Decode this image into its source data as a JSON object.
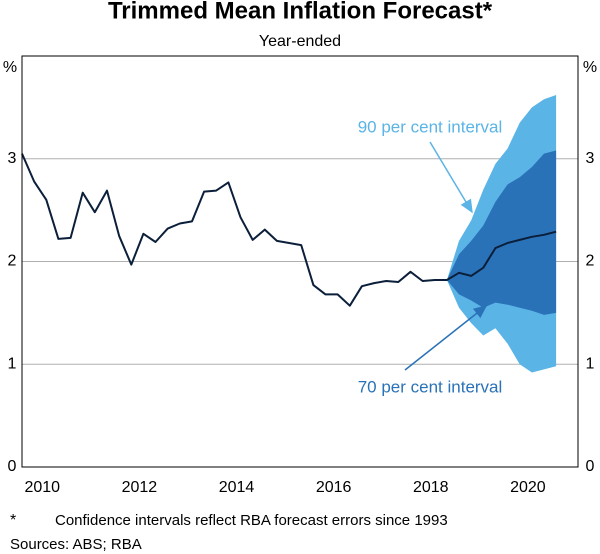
{
  "chart_data": {
    "type": "line",
    "title": "Trimmed Mean Inflation Forecast*",
    "subtitle": "Year-ended",
    "y_unit": "%",
    "footnote_marker": "*",
    "footnote": "Confidence intervals reflect RBA forecast errors since 1993",
    "sources": "Sources: ABS; RBA",
    "x": [
      2010,
      2010.25,
      2010.5,
      2010.75,
      2011,
      2011.25,
      2011.5,
      2011.75,
      2012,
      2012.25,
      2012.5,
      2012.75,
      2013,
      2013.25,
      2013.5,
      2013.75,
      2014,
      2014.25,
      2014.5,
      2014.75,
      2015,
      2015.25,
      2015.5,
      2015.75,
      2016,
      2016.25,
      2016.5,
      2016.75,
      2017,
      2017.25,
      2017.5,
      2017.75,
      2018,
      2018.25,
      2018.5,
      2018.75,
      2019,
      2019.25,
      2019.5,
      2019.75,
      2020,
      2020.25,
      2020.5,
      2020.75,
      2021
    ],
    "xlim": [
      2010,
      2021.45
    ],
    "xticks": [
      {
        "value": 2010.5,
        "label": "2010"
      },
      {
        "value": 2012.5,
        "label": "2012"
      },
      {
        "value": 2014.5,
        "label": "2014"
      },
      {
        "value": 2016.5,
        "label": "2016"
      },
      {
        "value": 2018.5,
        "label": "2018"
      },
      {
        "value": 2020.5,
        "label": "2020"
      }
    ],
    "ylim": [
      0,
      4
    ],
    "yticks": [
      0,
      1,
      2,
      3
    ],
    "grid": true,
    "series": [
      {
        "color": "#0b1f3a",
        "values": [
          3.05,
          2.78,
          2.6,
          2.22,
          2.23,
          2.67,
          2.48,
          2.69,
          2.25,
          1.97,
          2.27,
          2.19,
          2.32,
          2.37,
          2.39,
          2.68,
          2.69,
          2.77,
          2.43,
          2.21,
          2.31,
          2.2,
          2.18,
          2.16,
          1.77,
          1.68,
          1.68,
          1.57,
          1.76,
          1.79,
          1.81,
          1.8,
          1.9,
          1.81,
          1.82,
          1.82,
          1.89,
          1.86,
          1.94,
          2.13,
          2.18,
          2.21,
          2.24,
          2.26,
          2.29
        ]
      }
    ],
    "bands": [
      {
        "label": "90 per cent interval",
        "color": "#5ab4e6",
        "upper": [
          null,
          null,
          null,
          null,
          null,
          null,
          null,
          null,
          null,
          null,
          null,
          null,
          null,
          null,
          null,
          null,
          null,
          null,
          null,
          null,
          null,
          null,
          null,
          null,
          null,
          null,
          null,
          null,
          null,
          null,
          null,
          null,
          null,
          null,
          null,
          1.82,
          2.2,
          2.4,
          2.7,
          2.95,
          3.1,
          3.35,
          3.5,
          3.58,
          3.62
        ],
        "lower": [
          null,
          null,
          null,
          null,
          null,
          null,
          null,
          null,
          null,
          null,
          null,
          null,
          null,
          null,
          null,
          null,
          null,
          null,
          null,
          null,
          null,
          null,
          null,
          null,
          null,
          null,
          null,
          null,
          null,
          null,
          null,
          null,
          null,
          null,
          null,
          1.82,
          1.55,
          1.4,
          1.28,
          1.35,
          1.2,
          1.0,
          0.92,
          0.95,
          0.98
        ]
      },
      {
        "label": "70 per cent interval",
        "color": "#2a72b8",
        "upper": [
          null,
          null,
          null,
          null,
          null,
          null,
          null,
          null,
          null,
          null,
          null,
          null,
          null,
          null,
          null,
          null,
          null,
          null,
          null,
          null,
          null,
          null,
          null,
          null,
          null,
          null,
          null,
          null,
          null,
          null,
          null,
          null,
          null,
          null,
          null,
          1.82,
          2.07,
          2.2,
          2.35,
          2.58,
          2.75,
          2.82,
          2.92,
          3.05,
          3.08
        ],
        "lower": [
          null,
          null,
          null,
          null,
          null,
          null,
          null,
          null,
          null,
          null,
          null,
          null,
          null,
          null,
          null,
          null,
          null,
          null,
          null,
          null,
          null,
          null,
          null,
          null,
          null,
          null,
          null,
          null,
          null,
          null,
          null,
          null,
          null,
          null,
          null,
          1.82,
          1.68,
          1.62,
          1.55,
          1.6,
          1.58,
          1.55,
          1.52,
          1.48,
          1.5
        ]
      }
    ]
  }
}
